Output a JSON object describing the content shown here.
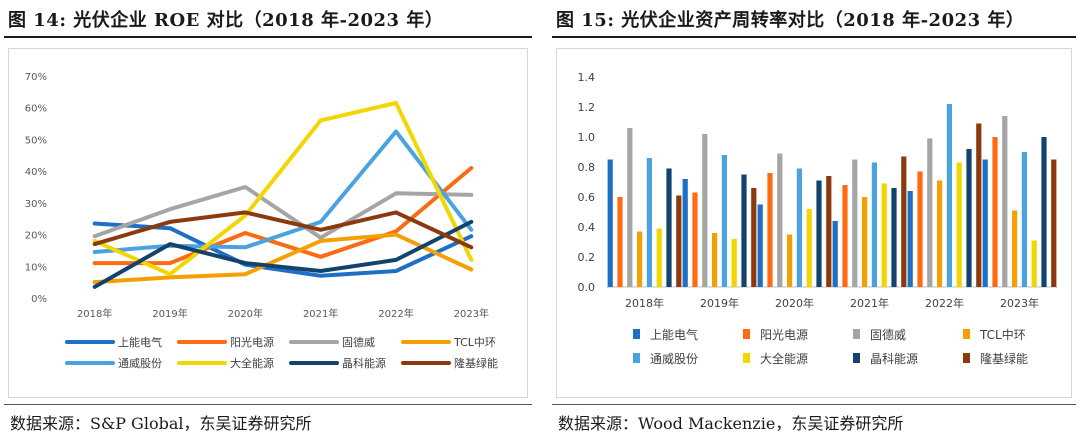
{
  "left": {
    "title": "图 14:  光伏企业 ROE 对比（2018 年-2023 年）",
    "source": "数据来源：S&P Global，东吴证券研究所"
  },
  "right": {
    "title": "图 15:  光伏企业资产周转率对比（2018 年-2023 年）",
    "source": "数据来源：Wood Mackenzie，东吴证券研究所"
  },
  "chart_data": [
    {
      "type": "line",
      "title": "光伏企业 ROE 对比（2018 年-2023 年）",
      "categories": [
        "2018年",
        "2019年",
        "2020年",
        "2021年",
        "2022年",
        "2023年"
      ],
      "ylim": [
        0,
        70
      ],
      "yticks": [
        "0%",
        "10%",
        "20%",
        "30%",
        "40%",
        "50%",
        "60%",
        "70%"
      ],
      "ytick_values": [
        0,
        10,
        20,
        30,
        40,
        50,
        60,
        70
      ],
      "legend_position": "bottom",
      "series": [
        {
          "name": "上能电气",
          "color": "#1f6fc5",
          "values": [
            23.5,
            22,
            10.5,
            7,
            8.5,
            19.5
          ]
        },
        {
          "name": "阳光电源",
          "color": "#ff6a13",
          "values": [
            11,
            11,
            20.5,
            13,
            21,
            41
          ]
        },
        {
          "name": "固德威",
          "color": "#a5a5a5",
          "values": [
            19.5,
            28,
            35,
            19,
            33,
            32.5
          ]
        },
        {
          "name": "TCL中环",
          "color": "#f5a000",
          "values": [
            5,
            6.5,
            7.5,
            18,
            20,
            9
          ]
        },
        {
          "name": "通威股份",
          "color": "#4aa3df",
          "values": [
            14.5,
            16.5,
            16,
            24,
            52.5,
            21.5
          ]
        },
        {
          "name": "大全能源",
          "color": "#f2d600",
          "values": [
            18,
            7.5,
            26,
            56,
            61.5,
            12
          ]
        },
        {
          "name": "晶科能源",
          "color": "#12436e",
          "values": [
            3.5,
            17,
            11,
            8.5,
            12,
            24
          ]
        },
        {
          "name": "隆基绿能",
          "color": "#8b3a0e",
          "values": [
            17,
            24,
            27,
            21.5,
            27,
            16
          ]
        }
      ]
    },
    {
      "type": "bar",
      "title": "光伏企业资产周转率对比（2018 年-2023 年）",
      "categories": [
        "2018年",
        "2019年",
        "2020年",
        "2021年",
        "2022年",
        "2023年"
      ],
      "ylim": [
        0,
        1.4
      ],
      "yticks": [
        "0.0",
        "0.2",
        "0.4",
        "0.6",
        "0.8",
        "1.0",
        "1.2",
        "1.4"
      ],
      "ytick_values": [
        0,
        0.2,
        0.4,
        0.6,
        0.8,
        1.0,
        1.2,
        1.4
      ],
      "legend_position": "bottom",
      "series": [
        {
          "name": "上能电气",
          "color": "#1f6fc5",
          "values": [
            0.85,
            0.72,
            0.55,
            0.44,
            0.64,
            0.85
          ]
        },
        {
          "name": "阳光电源",
          "color": "#ff6a13",
          "values": [
            0.6,
            0.63,
            0.76,
            0.68,
            0.77,
            1.0
          ]
        },
        {
          "name": "固德威",
          "color": "#a5a5a5",
          "values": [
            1.06,
            1.02,
            0.89,
            0.85,
            0.99,
            1.14
          ]
        },
        {
          "name": "TCL中环",
          "color": "#f5a000",
          "values": [
            0.37,
            0.36,
            0.35,
            0.6,
            0.71,
            0.51
          ]
        },
        {
          "name": "通威股份",
          "color": "#4aa3df",
          "values": [
            0.86,
            0.88,
            0.79,
            0.83,
            1.22,
            0.9
          ]
        },
        {
          "name": "大全能源",
          "color": "#f2d600",
          "values": [
            0.39,
            0.32,
            0.52,
            0.69,
            0.83,
            0.31
          ]
        },
        {
          "name": "晶科能源",
          "color": "#12436e",
          "values": [
            0.79,
            0.75,
            0.71,
            0.66,
            0.92,
            1.0
          ]
        },
        {
          "name": "隆基绿能",
          "color": "#8b3a0e",
          "values": [
            0.61,
            0.66,
            0.74,
            0.87,
            1.09,
            0.85
          ]
        }
      ]
    }
  ]
}
